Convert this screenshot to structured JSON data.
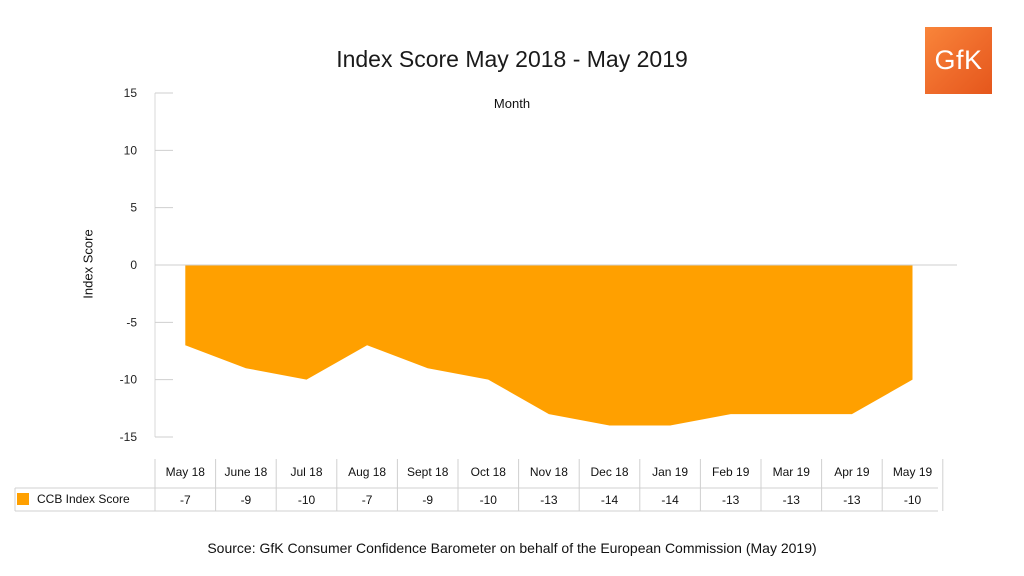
{
  "chart_data": {
    "type": "area",
    "title": "Index Score May 2018 - May 2019",
    "xlabel": "Month",
    "ylabel": "Index Score",
    "categories": [
      "May 18",
      "June 18",
      "Jul 18",
      "Aug 18",
      "Sept 18",
      "Oct 18",
      "Nov 18",
      "Dec 18",
      "Jan 19",
      "Feb 19",
      "Mar 19",
      "Apr 19",
      "May 19"
    ],
    "series": [
      {
        "name": "CCB Index Score",
        "values": [
          -7,
          -9,
          -10,
          -7,
          -9,
          -10,
          -13,
          -14,
          -14,
          -13,
          -13,
          -13,
          -10
        ],
        "color": "#ffa000"
      }
    ],
    "ylim": [
      -15,
      15
    ],
    "yticks": [
      15,
      10,
      5,
      0,
      -5,
      -10,
      -15
    ],
    "legend": "bottom-left data table",
    "grid": false
  },
  "logo_text": "GfK",
  "source": "Source: GfK Consumer Confidence Barometer on behalf of the European Commission (May 2019)"
}
